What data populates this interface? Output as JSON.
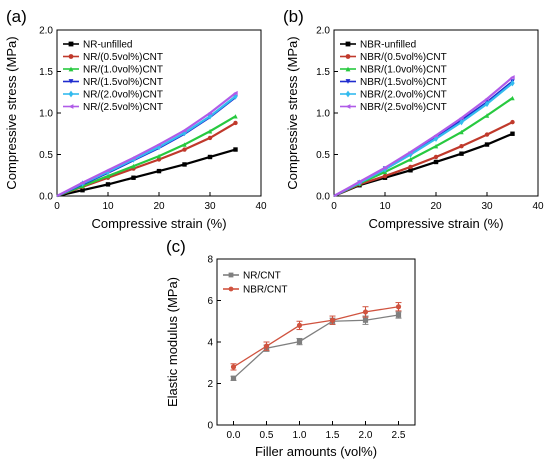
{
  "chart_data": [
    {
      "panel_label": "(a)",
      "type": "line",
      "xlabel": "Compressive strain (%)",
      "ylabel": "Compressive stress (MPa)",
      "xlim": [
        0,
        40
      ],
      "ylim": [
        0,
        2.0
      ],
      "xticks": [
        "0",
        "10",
        "20",
        "30",
        "40"
      ],
      "yticks": [
        "0.0",
        "0.5",
        "1.0",
        "1.5",
        "2.0"
      ],
      "legend_position": "top-left",
      "series": [
        {
          "name": "NR-unfilled",
          "color": "#000000",
          "marker": "square",
          "x": [
            0,
            5,
            10,
            15,
            20,
            25,
            30,
            35
          ],
          "y": [
            0,
            0.07,
            0.14,
            0.22,
            0.3,
            0.38,
            0.47,
            0.56
          ]
        },
        {
          "name": "NR/(0.5vol%)CNT",
          "color": "#c0392b",
          "marker": "circle",
          "x": [
            0,
            5,
            10,
            15,
            20,
            25,
            30,
            35
          ],
          "y": [
            0,
            0.11,
            0.22,
            0.33,
            0.44,
            0.56,
            0.7,
            0.88
          ]
        },
        {
          "name": "NR/(1.0vol%)CNT",
          "color": "#27c93f",
          "marker": "triangle-up",
          "x": [
            0,
            5,
            10,
            15,
            20,
            25,
            30,
            35
          ],
          "y": [
            0,
            0.12,
            0.24,
            0.36,
            0.48,
            0.62,
            0.78,
            0.96
          ]
        },
        {
          "name": "NR/(1.5vol%)CNT",
          "color": "#1f2ccf",
          "marker": "triangle-down",
          "x": [
            0,
            5,
            10,
            15,
            20,
            25,
            30,
            35
          ],
          "y": [
            0,
            0.14,
            0.28,
            0.43,
            0.58,
            0.75,
            0.95,
            1.19
          ]
        },
        {
          "name": "NR/(2.0vol%)CNT",
          "color": "#33bbee",
          "marker": "diamond",
          "x": [
            0,
            5,
            10,
            15,
            20,
            25,
            30,
            35
          ],
          "y": [
            0,
            0.15,
            0.29,
            0.44,
            0.59,
            0.76,
            0.96,
            1.2
          ]
        },
        {
          "name": "NR/(2.5vol%)CNT",
          "color": "#b05be8",
          "marker": "triangle-left",
          "x": [
            0,
            5,
            10,
            15,
            20,
            25,
            30,
            35
          ],
          "y": [
            0,
            0.16,
            0.31,
            0.46,
            0.62,
            0.79,
            1.0,
            1.24
          ]
        }
      ]
    },
    {
      "panel_label": "(b)",
      "type": "line",
      "xlabel": "Compressive strain (%)",
      "ylabel": "Compressive stress (MPa)",
      "xlim": [
        0,
        40
      ],
      "ylim": [
        0,
        2.0
      ],
      "xticks": [
        "0",
        "10",
        "20",
        "30",
        "40"
      ],
      "yticks": [
        "0.0",
        "0.5",
        "1.0",
        "1.5",
        "2.0"
      ],
      "legend_position": "top-left",
      "series": [
        {
          "name": "NBR-unfilled",
          "color": "#000000",
          "marker": "square",
          "x": [
            0,
            5,
            10,
            15,
            20,
            25,
            30,
            35
          ],
          "y": [
            0,
            0.13,
            0.22,
            0.31,
            0.41,
            0.51,
            0.62,
            0.75
          ]
        },
        {
          "name": "NBR/(0.5vol%)CNT",
          "color": "#c0392b",
          "marker": "circle",
          "x": [
            0,
            5,
            10,
            15,
            20,
            25,
            30,
            35
          ],
          "y": [
            0,
            0.14,
            0.24,
            0.35,
            0.47,
            0.6,
            0.74,
            0.89
          ]
        },
        {
          "name": "NBR/(1.0vol%)CNT",
          "color": "#27c93f",
          "marker": "triangle-up",
          "x": [
            0,
            5,
            10,
            15,
            20,
            25,
            30,
            35
          ],
          "y": [
            0,
            0.15,
            0.29,
            0.44,
            0.6,
            0.77,
            0.97,
            1.18
          ]
        },
        {
          "name": "NBR/(1.5vol%)CNT",
          "color": "#1f2ccf",
          "marker": "triangle-down",
          "x": [
            0,
            5,
            10,
            15,
            20,
            25,
            30,
            35
          ],
          "y": [
            0,
            0.16,
            0.33,
            0.51,
            0.7,
            0.91,
            1.13,
            1.38
          ]
        },
        {
          "name": "NBR/(2.0vol%)CNT",
          "color": "#33bbee",
          "marker": "diamond",
          "x": [
            0,
            5,
            10,
            15,
            20,
            25,
            30,
            35
          ],
          "y": [
            0,
            0.16,
            0.32,
            0.5,
            0.69,
            0.89,
            1.11,
            1.36
          ]
        },
        {
          "name": "NBR/(2.5vol%)CNT",
          "color": "#b05be8",
          "marker": "triangle-left",
          "x": [
            0,
            5,
            10,
            15,
            20,
            25,
            30,
            35
          ],
          "y": [
            0,
            0.17,
            0.34,
            0.53,
            0.73,
            0.94,
            1.17,
            1.43
          ]
        }
      ]
    },
    {
      "panel_label": "(c)",
      "type": "line",
      "xlabel": "Filler amounts (vol%)",
      "ylabel": "Elastic modulus (MPa)",
      "xlim": [
        -0.25,
        2.75
      ],
      "ylim": [
        0,
        8
      ],
      "xticks": [
        "0.0",
        "0.5",
        "1.0",
        "1.5",
        "2.0",
        "2.5"
      ],
      "yticks": [
        "0",
        "2",
        "4",
        "6",
        "8"
      ],
      "legend_position": "top-left",
      "series": [
        {
          "name": "NR/CNT",
          "color": "#7f7f7f",
          "marker": "square",
          "x": [
            0.0,
            0.5,
            1.0,
            1.5,
            2.0,
            2.5
          ],
          "y": [
            2.25,
            3.7,
            4.02,
            5.0,
            5.05,
            5.3
          ],
          "err": [
            0.1,
            0.15,
            0.15,
            0.15,
            0.2,
            0.15
          ]
        },
        {
          "name": "NBR/CNT",
          "color": "#d0533f",
          "marker": "circle",
          "x": [
            0.0,
            0.5,
            1.0,
            1.5,
            2.0,
            2.5
          ],
          "y": [
            2.8,
            3.8,
            4.8,
            5.05,
            5.45,
            5.7
          ],
          "err": [
            0.15,
            0.2,
            0.2,
            0.2,
            0.25,
            0.2
          ]
        }
      ]
    }
  ]
}
